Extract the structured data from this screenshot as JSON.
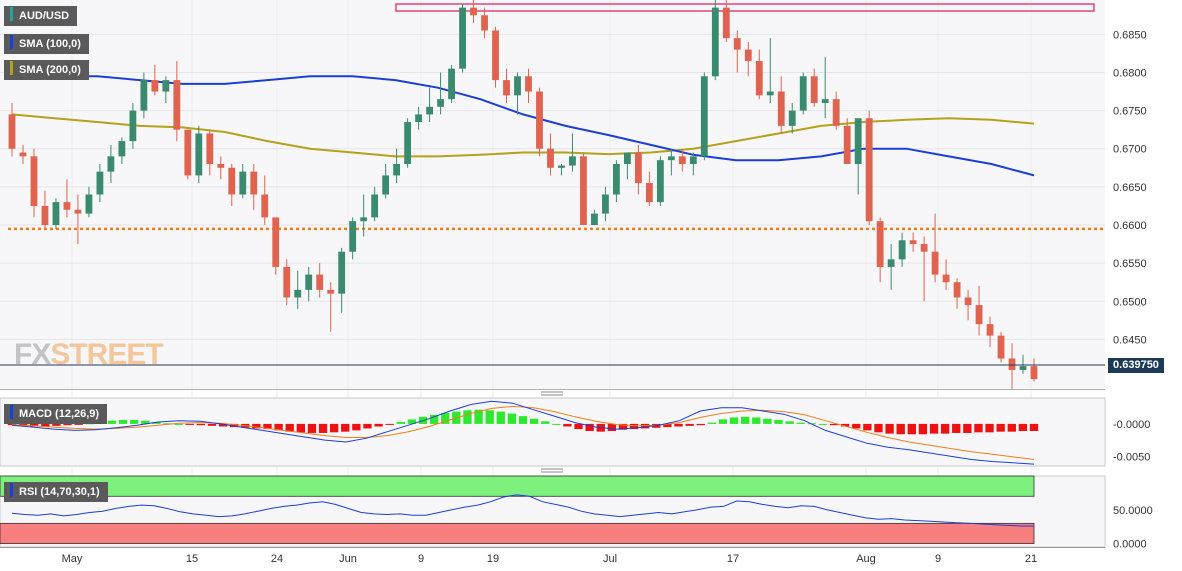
{
  "chart_data": {
    "type": "candlestick",
    "symbol": "AUD/USD",
    "last_price": "0.639750",
    "y_ticks": [
      "0.6850",
      "0.6800",
      "0.6750",
      "0.6700",
      "0.6650",
      "0.6600",
      "0.6550",
      "0.6500",
      "0.6450"
    ],
    "ylim": [
      0.6385,
      0.6895
    ],
    "x_ticks": [
      "May",
      "15",
      "24",
      "Jun",
      "9",
      "19",
      "Jul",
      "17",
      "Aug",
      "9",
      "21"
    ],
    "resistance_zone": [
      0.6885,
      0.6895
    ],
    "support_level": 0.6595,
    "candles_ohlc": [
      [
        0.6745,
        0.676,
        0.669,
        0.67
      ],
      [
        0.6695,
        0.6705,
        0.668,
        0.669
      ],
      [
        0.669,
        0.67,
        0.661,
        0.6625
      ],
      [
        0.6625,
        0.6645,
        0.6595,
        0.66
      ],
      [
        0.66,
        0.6635,
        0.6595,
        0.663
      ],
      [
        0.663,
        0.666,
        0.661,
        0.662
      ],
      [
        0.662,
        0.664,
        0.6575,
        0.6615
      ],
      [
        0.6615,
        0.665,
        0.661,
        0.664
      ],
      [
        0.664,
        0.668,
        0.663,
        0.667
      ],
      [
        0.667,
        0.6705,
        0.6655,
        0.669
      ],
      [
        0.669,
        0.6715,
        0.668,
        0.671
      ],
      [
        0.671,
        0.676,
        0.67,
        0.675
      ],
      [
        0.675,
        0.68,
        0.674,
        0.679
      ],
      [
        0.679,
        0.681,
        0.677,
        0.6775
      ],
      [
        0.6775,
        0.6795,
        0.676,
        0.679
      ],
      [
        0.679,
        0.6815,
        0.671,
        0.6725
      ],
      [
        0.6725,
        0.6725,
        0.666,
        0.6665
      ],
      [
        0.6665,
        0.673,
        0.6655,
        0.672
      ],
      [
        0.672,
        0.6725,
        0.6665,
        0.668
      ],
      [
        0.668,
        0.669,
        0.666,
        0.6675
      ],
      [
        0.6675,
        0.668,
        0.6625,
        0.664
      ],
      [
        0.664,
        0.668,
        0.6635,
        0.667
      ],
      [
        0.667,
        0.668,
        0.662,
        0.664
      ],
      [
        0.664,
        0.6665,
        0.66,
        0.661
      ],
      [
        0.661,
        0.661,
        0.6535,
        0.6545
      ],
      [
        0.6545,
        0.6555,
        0.6495,
        0.6505
      ],
      [
        0.6505,
        0.654,
        0.649,
        0.6515
      ],
      [
        0.6515,
        0.6545,
        0.65,
        0.6535
      ],
      [
        0.6535,
        0.655,
        0.6505,
        0.6515
      ],
      [
        0.6515,
        0.6525,
        0.646,
        0.651
      ],
      [
        0.651,
        0.657,
        0.6485,
        0.6565
      ],
      [
        0.6565,
        0.661,
        0.6555,
        0.6605
      ],
      [
        0.6605,
        0.664,
        0.6585,
        0.661
      ],
      [
        0.661,
        0.665,
        0.6605,
        0.664
      ],
      [
        0.664,
        0.668,
        0.6635,
        0.6665
      ],
      [
        0.6665,
        0.67,
        0.6655,
        0.668
      ],
      [
        0.668,
        0.674,
        0.6675,
        0.6735
      ],
      [
        0.6735,
        0.6755,
        0.6725,
        0.6745
      ],
      [
        0.6745,
        0.678,
        0.6735,
        0.6755
      ],
      [
        0.6755,
        0.68,
        0.6745,
        0.6765
      ],
      [
        0.6765,
        0.681,
        0.676,
        0.6805
      ],
      [
        0.6805,
        0.689,
        0.68,
        0.6885
      ],
      [
        0.6885,
        0.6895,
        0.6865,
        0.6875
      ],
      [
        0.6875,
        0.6885,
        0.6845,
        0.6855
      ],
      [
        0.6855,
        0.686,
        0.678,
        0.679
      ],
      [
        0.679,
        0.6805,
        0.676,
        0.677
      ],
      [
        0.677,
        0.68,
        0.6745,
        0.6795
      ],
      [
        0.6795,
        0.6805,
        0.676,
        0.6775
      ],
      [
        0.6775,
        0.678,
        0.669,
        0.67
      ],
      [
        0.67,
        0.672,
        0.6665,
        0.6675
      ],
      [
        0.6675,
        0.668,
        0.6665,
        0.6678
      ],
      [
        0.6678,
        0.672,
        0.667,
        0.669
      ],
      [
        0.669,
        0.6695,
        0.6605,
        0.66
      ],
      [
        0.66,
        0.662,
        0.66,
        0.6615
      ],
      [
        0.6615,
        0.665,
        0.6605,
        0.664
      ],
      [
        0.664,
        0.6685,
        0.663,
        0.668
      ],
      [
        0.668,
        0.6695,
        0.666,
        0.6695
      ],
      [
        0.6695,
        0.6705,
        0.664,
        0.6655
      ],
      [
        0.6655,
        0.667,
        0.6625,
        0.663
      ],
      [
        0.663,
        0.669,
        0.6625,
        0.6685
      ],
      [
        0.6685,
        0.67,
        0.6665,
        0.669
      ],
      [
        0.669,
        0.67,
        0.667,
        0.668
      ],
      [
        0.668,
        0.6695,
        0.6665,
        0.669
      ],
      [
        0.669,
        0.68,
        0.6685,
        0.6795
      ],
      [
        0.6795,
        0.6895,
        0.679,
        0.6885
      ],
      [
        0.6885,
        0.6895,
        0.684,
        0.6845
      ],
      [
        0.6845,
        0.6855,
        0.68,
        0.683
      ],
      [
        0.683,
        0.684,
        0.6795,
        0.6815
      ],
      [
        0.6815,
        0.683,
        0.6765,
        0.677
      ],
      [
        0.677,
        0.6845,
        0.676,
        0.6775
      ],
      [
        0.6775,
        0.6795,
        0.672,
        0.673
      ],
      [
        0.673,
        0.676,
        0.672,
        0.675
      ],
      [
        0.675,
        0.68,
        0.6745,
        0.6795
      ],
      [
        0.6795,
        0.6805,
        0.6755,
        0.676
      ],
      [
        0.676,
        0.682,
        0.674,
        0.6765
      ],
      [
        0.6765,
        0.6775,
        0.6725,
        0.673
      ],
      [
        0.673,
        0.674,
        0.668,
        0.668
      ],
      [
        0.668,
        0.673,
        0.664,
        0.674
      ],
      [
        0.674,
        0.675,
        0.66,
        0.6605
      ],
      [
        0.6605,
        0.661,
        0.6525,
        0.6545
      ],
      [
        0.6545,
        0.6575,
        0.6515,
        0.6555
      ],
      [
        0.6555,
        0.659,
        0.6545,
        0.658
      ],
      [
        0.658,
        0.659,
        0.6565,
        0.6575
      ],
      [
        0.6575,
        0.6585,
        0.65,
        0.6565
      ],
      [
        0.6565,
        0.6615,
        0.6525,
        0.6535
      ],
      [
        0.6535,
        0.6555,
        0.6515,
        0.6525
      ],
      [
        0.6525,
        0.653,
        0.649,
        0.6505
      ],
      [
        0.6505,
        0.6515,
        0.6475,
        0.6495
      ],
      [
        0.6495,
        0.652,
        0.6455,
        0.647
      ],
      [
        0.647,
        0.648,
        0.644,
        0.6455
      ],
      [
        0.6455,
        0.646,
        0.642,
        0.6425
      ],
      [
        0.6425,
        0.6445,
        0.6385,
        0.641
      ],
      [
        0.641,
        0.643,
        0.6405,
        0.6415
      ],
      [
        0.6415,
        0.6425,
        0.6395,
        0.6398
      ]
    ],
    "sma100_label": "SMA (100,0)",
    "sma200_label": "SMA (200,0)",
    "sma100": [
      0.68,
      0.6795,
      0.6795,
      0.679,
      0.6785,
      0.6785,
      0.679,
      0.6795,
      0.6795,
      0.679,
      0.678,
      0.6765,
      0.6745,
      0.673,
      0.6718,
      0.6705,
      0.6692,
      0.6685,
      0.6685,
      0.669,
      0.67,
      0.67,
      0.669,
      0.668,
      0.6665
    ],
    "sma200": [
      0.6745,
      0.674,
      0.6735,
      0.673,
      0.6728,
      0.6722,
      0.671,
      0.67,
      0.6695,
      0.669,
      0.669,
      0.6692,
      0.6695,
      0.6695,
      0.6693,
      0.6695,
      0.67,
      0.671,
      0.672,
      0.673,
      0.6735,
      0.6738,
      0.674,
      0.6738,
      0.6733
    ],
    "macd": {
      "label": "MACD (12,26,9)",
      "y_ticks": [
        "-0.0000",
        "-0.0050"
      ],
      "ylim": [
        -0.0065,
        0.004
      ],
      "histogram": [
        -0.0002,
        -0.0003,
        -0.0004,
        -0.0004,
        -0.0003,
        -0.0002,
        -0.0001,
        0.0001,
        0.0003,
        0.0005,
        0.0006,
        0.0006,
        0.0005,
        0.0003,
        0.0001,
        0.0,
        -0.0001,
        -0.0002,
        -0.0003,
        -0.0004,
        -0.0005,
        -0.0006,
        -0.0007,
        -0.0008,
        -0.001,
        -0.0012,
        -0.0013,
        -0.0014,
        -0.0014,
        -0.0013,
        -0.0012,
        -0.001,
        -0.0007,
        -0.0004,
        -0.0001,
        0.0003,
        0.0007,
        0.0011,
        0.0014,
        0.0017,
        0.0019,
        0.0021,
        0.0022,
        0.0021,
        0.0019,
        0.0016,
        0.0012,
        0.0008,
        0.0004,
        0.0,
        -0.0004,
        -0.0008,
        -0.0011,
        -0.0012,
        -0.0011,
        -0.0009,
        -0.0008,
        -0.0007,
        -0.0006,
        -0.0005,
        -0.0004,
        -0.0003,
        -0.0002,
        0.0002,
        0.0007,
        0.001,
        0.0011,
        0.001,
        0.0008,
        0.0006,
        0.0004,
        0.0002,
        0.0001,
        0.0,
        -0.0002,
        -0.0004,
        -0.0007,
        -0.001,
        -0.0013,
        -0.0015,
        -0.0016,
        -0.0016,
        -0.0016,
        -0.0015,
        -0.0015,
        -0.0014,
        -0.0014,
        -0.0013,
        -0.0013,
        -0.0012,
        -0.0012,
        -0.0011,
        -0.0011
      ],
      "macd_line": [
        -0.0002,
        -0.0005,
        -0.0008,
        -0.001,
        -0.0009,
        -0.0006,
        -0.0002,
        0.0003,
        0.0005,
        0.0004,
        0.0,
        -0.0005,
        -0.001,
        -0.0015,
        -0.002,
        -0.0025,
        -0.0028,
        -0.0022,
        -0.0012,
        -0.0002,
        0.0008,
        0.002,
        0.003,
        0.0035,
        0.0032,
        0.0022,
        0.0012,
        0.0002,
        -0.0005,
        -0.0008,
        -0.0006,
        -0.0002,
        0.0005,
        0.002,
        0.0025,
        0.0025,
        0.002,
        0.0015,
        0.0005,
        -0.001,
        -0.002,
        -0.003,
        -0.0036,
        -0.004,
        -0.0045,
        -0.005,
        -0.0055,
        -0.0058,
        -0.006,
        -0.0062
      ],
      "signal_line": [
        -0.0001,
        -0.0003,
        -0.0005,
        -0.0007,
        -0.0008,
        -0.0007,
        -0.0005,
        -0.0002,
        0.0001,
        0.0002,
        0.0001,
        -0.0002,
        -0.0006,
        -0.001,
        -0.0014,
        -0.0018,
        -0.0021,
        -0.0021,
        -0.0018,
        -0.0012,
        -0.0004,
        0.0006,
        0.0016,
        0.0024,
        0.0027,
        0.0025,
        0.0019,
        0.0011,
        0.0004,
        -0.0001,
        -0.0003,
        -0.0002,
        0.0002,
        0.001,
        0.0016,
        0.002,
        0.0021,
        0.0019,
        0.0014,
        0.0005,
        -0.0004,
        -0.0013,
        -0.0021,
        -0.0028,
        -0.0033,
        -0.0038,
        -0.0043,
        -0.0047,
        -0.0051,
        -0.0055
      ]
    },
    "rsi": {
      "label": "RSI (14,70,30,1)",
      "y_ticks": [
        "50.0000",
        "0.0000"
      ],
      "ylim": [
        -5,
        100
      ],
      "overbought": 70,
      "oversold": 30,
      "values": [
        45,
        43,
        42,
        44,
        41,
        43,
        46,
        48,
        52,
        55,
        57,
        56,
        52,
        47,
        44,
        42,
        40,
        41,
        44,
        48,
        52,
        55,
        57,
        60,
        62,
        58,
        52,
        46,
        44,
        43,
        44,
        42,
        42,
        46,
        50,
        54,
        57,
        62,
        69,
        72,
        70,
        62,
        58,
        54,
        48,
        44,
        42,
        40,
        42,
        44,
        46,
        44,
        47,
        50,
        54,
        55,
        63,
        62,
        58,
        55,
        53,
        56,
        55,
        50,
        46,
        42,
        38,
        36,
        37,
        35,
        34,
        33,
        32,
        31,
        30,
        29,
        28,
        27,
        26,
        26
      ]
    }
  }
}
